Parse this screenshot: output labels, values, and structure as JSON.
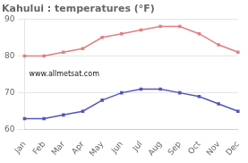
{
  "chart_data": {
    "type": "line",
    "title": "Kahului : temperatures (°F)",
    "categories": [
      "Jan",
      "Feb",
      "Mar",
      "Apr",
      "May",
      "Jun",
      "Jul",
      "Aug",
      "Sep",
      "Oct",
      "Nov",
      "Dec"
    ],
    "series": [
      {
        "color": "#e08080",
        "marker": "square",
        "line_style": "solid",
        "values": [
          80,
          80,
          81,
          82,
          85,
          86,
          87,
          88,
          88,
          86,
          83,
          81
        ]
      },
      {
        "color": "#5555bb",
        "marker": "square",
        "line_style": "solid",
        "values": [
          63,
          63,
          64,
          65,
          68,
          70,
          71,
          71,
          70,
          69,
          67,
          65
        ]
      }
    ],
    "ylim": [
      60,
      90
    ],
    "yticks": [
      60,
      70,
      80,
      90
    ],
    "grid": true,
    "annotations": [
      "www.allmetsat.com"
    ]
  }
}
